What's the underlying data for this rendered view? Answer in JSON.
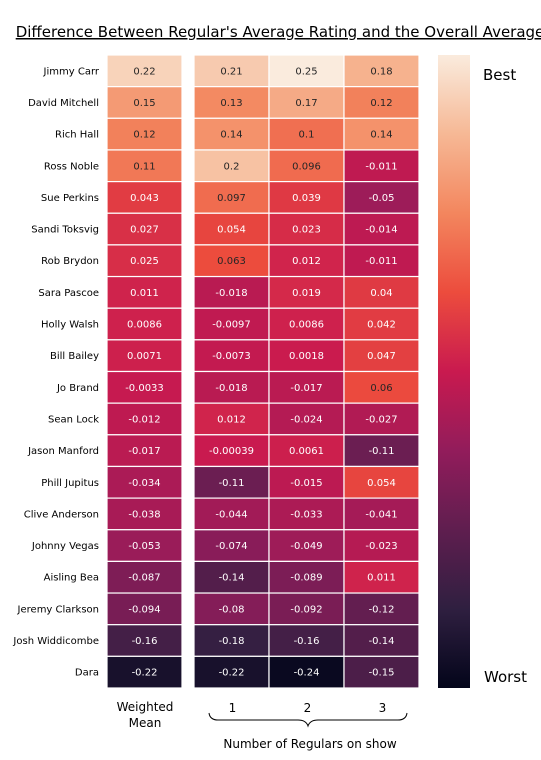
{
  "chart_data": {
    "type": "heatmap",
    "title": "Difference Between Regular's Average Rating and the Overall Average",
    "rows": [
      "Jimmy Carr",
      "David Mitchell",
      "Rich Hall",
      "Ross Noble",
      "Sue Perkins",
      "Sandi Toksvig",
      "Rob Brydon",
      "Sara Pascoe",
      "Holly Walsh",
      "Bill Bailey",
      "Jo Brand",
      "Sean Lock",
      "Jason Manford",
      "Phill Jupitus",
      "Clive Anderson",
      "Johnny Vegas",
      "Aisling Bea",
      "Jeremy Clarkson",
      "Josh Widdicombe",
      "Dara"
    ],
    "weighted_mean": {
      "label": "Weighted\nMean",
      "values": [
        "0.22",
        "0.15",
        "0.12",
        "0.11",
        "0.043",
        "0.027",
        "0.025",
        "0.011",
        "0.0086",
        "0.0071",
        "-0.0033",
        "-0.012",
        "-0.017",
        "-0.034",
        "-0.038",
        "-0.053",
        "-0.087",
        "-0.094",
        "-0.16",
        "-0.22"
      ]
    },
    "regulars": {
      "xlabel": "Number of Regulars on show",
      "columns": [
        "1",
        "2",
        "3"
      ],
      "values": [
        [
          "0.21",
          "0.25",
          "0.18"
        ],
        [
          "0.13",
          "0.17",
          "0.12"
        ],
        [
          "0.14",
          "0.1",
          "0.14"
        ],
        [
          "0.2",
          "0.096",
          "-0.011"
        ],
        [
          "0.097",
          "0.039",
          "-0.05"
        ],
        [
          "0.054",
          "0.023",
          "-0.014"
        ],
        [
          "0.063",
          "0.012",
          "-0.011"
        ],
        [
          "-0.018",
          "0.019",
          "0.04"
        ],
        [
          "-0.0097",
          "0.0086",
          "0.042"
        ],
        [
          "-0.0073",
          "0.0018",
          "0.047"
        ],
        [
          "-0.018",
          "-0.017",
          "0.06"
        ],
        [
          "0.012",
          "-0.024",
          "-0.027"
        ],
        [
          "-0.00039",
          "0.0061",
          "-0.11"
        ],
        [
          "-0.11",
          "-0.015",
          "0.054"
        ],
        [
          "-0.044",
          "-0.033",
          "-0.041"
        ],
        [
          "-0.074",
          "-0.049",
          "-0.023"
        ],
        [
          "-0.14",
          "-0.089",
          "0.011"
        ],
        [
          "-0.08",
          "-0.092",
          "-0.12"
        ],
        [
          "-0.18",
          "-0.16",
          "-0.14"
        ],
        [
          "-0.22",
          "-0.24",
          "-0.15"
        ]
      ]
    },
    "colorbar": {
      "top_label": "Best",
      "bottom_label": "Worst",
      "vmin": -0.25,
      "vmax": 0.25,
      "colormap": "rocket"
    }
  }
}
